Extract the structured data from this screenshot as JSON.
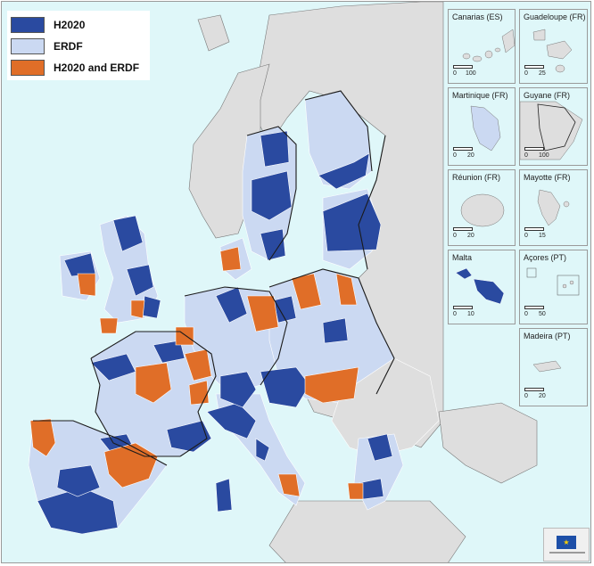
{
  "legend": {
    "items": [
      {
        "label": "H2020",
        "color": "#2a4aa0"
      },
      {
        "label": "ERDF",
        "color": "#cbd9f2"
      },
      {
        "label": "H2020 and ERDF",
        "color": "#e06e28"
      }
    ]
  },
  "colors": {
    "sea": "#dff7f9",
    "non_eu_land": "#dedede",
    "h2020": "#2a4aa0",
    "erdf": "#cbd9f2",
    "both": "#e06e28"
  },
  "insets": [
    {
      "title": "Canarias (ES)",
      "scale": [
        "0",
        "100"
      ]
    },
    {
      "title": "Guadeloupe (FR)",
      "scale": [
        "0",
        "25"
      ]
    },
    {
      "title": "Martinique (FR)",
      "scale": [
        "0",
        "20"
      ]
    },
    {
      "title": "Guyane (FR)",
      "scale": [
        "0",
        "100"
      ]
    },
    {
      "title": "Réunion (FR)",
      "scale": [
        "0",
        "20"
      ]
    },
    {
      "title": "Mayotte (FR)",
      "scale": [
        "0",
        "15"
      ]
    },
    {
      "title": "Malta",
      "scale": [
        "0",
        "10"
      ]
    },
    {
      "title": "Açores (PT)",
      "scale": [
        "0",
        "50"
      ]
    },
    {
      "title": "Madeira (PT)",
      "scale": [
        "0",
        "20"
      ]
    }
  ],
  "logo": {
    "icon": "eu-flag-icon"
  }
}
